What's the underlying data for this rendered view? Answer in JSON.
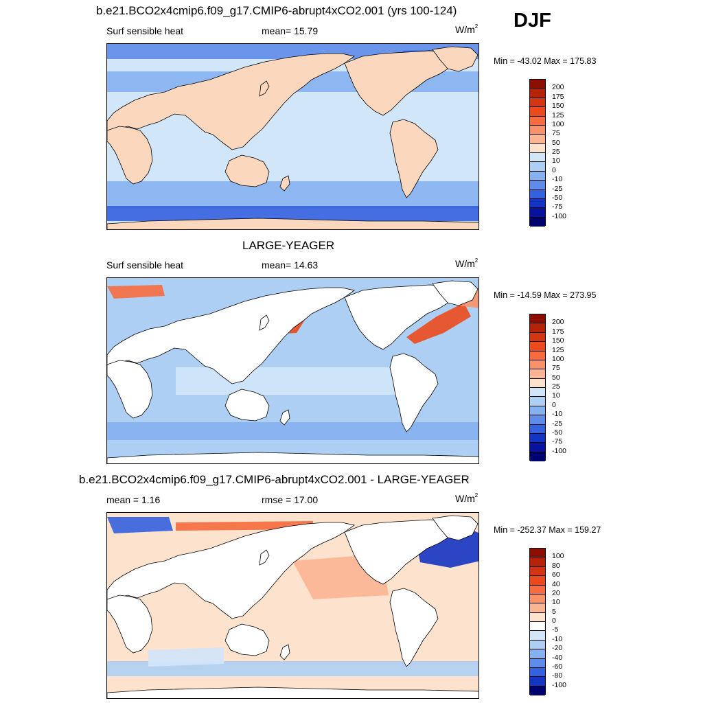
{
  "season": "DJF",
  "panels": [
    {
      "title": "b.e21.BCO2x4cmip6.f09_g17.CMIP6-abrupt4xCO2.001 (yrs 100-124)",
      "left": "Surf sensible heat",
      "center": "mean=  15.79",
      "units_base": "W/m",
      "units_exp": "2",
      "minmax": "Min = -43.02 Max = 175.83",
      "ocean_color": "#d2e6fa",
      "land_color": "#fbd7be",
      "land_fill": true,
      "colorbar": {
        "labels": [
          "200",
          "175",
          "150",
          "125",
          "100",
          "75",
          "50",
          "25",
          "10",
          "0",
          "-10",
          "-25",
          "-50",
          "-75",
          "-100"
        ],
        "colors": [
          "#8b0f00",
          "#b42308",
          "#d33411",
          "#ec4a1c",
          "#f66b3f",
          "#f99169",
          "#fbb595",
          "#fde2cd",
          "#d2e6fa",
          "#aecff4",
          "#86b0ee",
          "#5e8ce8",
          "#3461df",
          "#1434c4",
          "#07139c",
          "#00036e"
        ]
      }
    },
    {
      "title": "LARGE-YEAGER",
      "left": "Surf sensible heat",
      "center": "mean=  14.63",
      "units_base": "W/m",
      "units_exp": "2",
      "minmax": "Min = -14.59 Max = 273.95",
      "ocean_color": "#aecff4",
      "land_color": "#ffffff",
      "land_fill": false,
      "colorbar": {
        "labels": [
          "200",
          "175",
          "150",
          "125",
          "100",
          "75",
          "50",
          "25",
          "10",
          "0",
          "-10",
          "-25",
          "-50",
          "-75",
          "-100"
        ],
        "colors": [
          "#8b0f00",
          "#b42308",
          "#d33411",
          "#ec4a1c",
          "#f66b3f",
          "#f99169",
          "#fbb595",
          "#fde2cd",
          "#d2e6fa",
          "#aecff4",
          "#86b0ee",
          "#5e8ce8",
          "#3461df",
          "#1434c4",
          "#07139c",
          "#00036e"
        ]
      }
    },
    {
      "title": "b.e21.BCO2x4cmip6.f09_g17.CMIP6-abrupt4xCO2.001 - LARGE-YEAGER",
      "left": "mean =   1.16",
      "center": "rmse =  17.00",
      "units_base": "W/m",
      "units_exp": "2",
      "minmax": "Min = -252.37 Max = 159.27",
      "ocean_color": "#fde2cd",
      "land_color": "#ffffff",
      "land_fill": false,
      "colorbar": {
        "labels": [
          "100",
          "80",
          "60",
          "40",
          "20",
          "10",
          "5",
          "0",
          "-5",
          "-10",
          "-20",
          "-40",
          "-60",
          "-80",
          "-100"
        ],
        "colors": [
          "#8b0f00",
          "#b42308",
          "#d33411",
          "#ec4a1c",
          "#f66b3f",
          "#f99169",
          "#fbb595",
          "#fde2cd",
          "#ffffff",
          "#d2e6fa",
          "#aecff4",
          "#86b0ee",
          "#5e8ce8",
          "#3461df",
          "#1434c4",
          "#00036e"
        ]
      }
    }
  ]
}
